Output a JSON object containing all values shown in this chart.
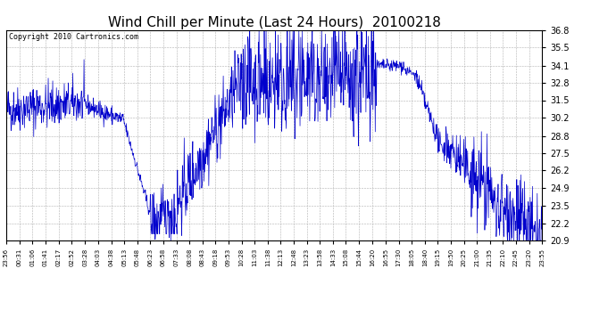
{
  "title": "Wind Chill per Minute (Last 24 Hours)  20100218",
  "copyright": "Copyright 2010 Cartronics.com",
  "yticks": [
    20.9,
    22.2,
    23.5,
    24.9,
    26.2,
    27.5,
    28.8,
    30.2,
    31.5,
    32.8,
    34.1,
    35.5,
    36.8
  ],
  "ymin": 20.9,
  "ymax": 36.8,
  "line_color": "#0000cc",
  "bg_color": "#ffffff",
  "grid_color": "#b0b0b0",
  "title_fontsize": 11,
  "copyright_fontsize": 6,
  "xtick_fontsize": 5,
  "ytick_fontsize": 7,
  "x_labels": [
    "23:56",
    "00:31",
    "01:06",
    "01:41",
    "02:17",
    "02:52",
    "03:28",
    "04:03",
    "04:38",
    "05:13",
    "05:48",
    "06:23",
    "06:58",
    "07:33",
    "08:08",
    "08:43",
    "09:18",
    "09:53",
    "10:28",
    "11:03",
    "11:38",
    "12:13",
    "12:48",
    "13:23",
    "13:58",
    "14:33",
    "15:08",
    "15:44",
    "16:20",
    "16:55",
    "17:30",
    "18:05",
    "18:40",
    "19:15",
    "19:50",
    "20:25",
    "21:00",
    "21:35",
    "22:10",
    "22:45",
    "23:20",
    "23:55"
  ]
}
